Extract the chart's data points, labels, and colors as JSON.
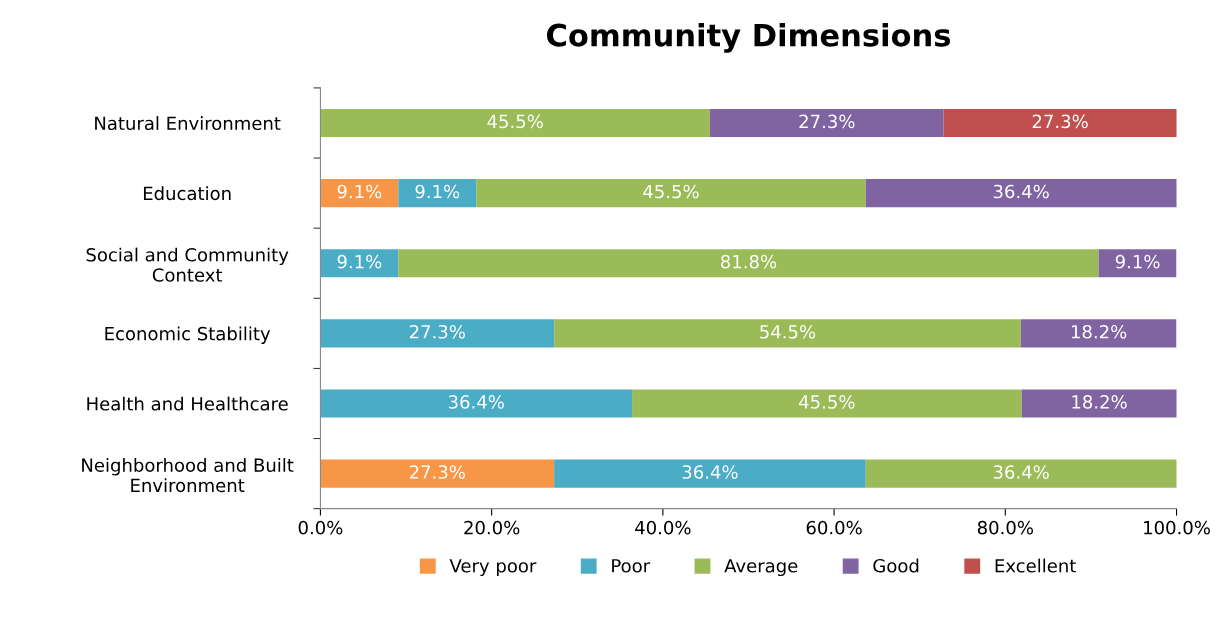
{
  "chart_data": {
    "type": "bar",
    "orientation": "horizontal",
    "stacked": true,
    "title": "Community Dimensions",
    "categories": [
      "Natural Environment",
      "Education",
      "Social and Community\nContext",
      "Economic Stability",
      "Health and Healthcare",
      "Neighborhood and Built\nEnvironment"
    ],
    "series": [
      {
        "name": "Very poor",
        "color": "#f79646",
        "values": [
          null,
          9.1,
          null,
          null,
          null,
          27.3
        ],
        "value_labels": [
          null,
          "9.1%",
          null,
          null,
          null,
          "27.3%"
        ]
      },
      {
        "name": "Poor",
        "color": "#4bacc6",
        "values": [
          null,
          9.1,
          9.1,
          27.3,
          36.4,
          36.4
        ],
        "value_labels": [
          null,
          "9.1%",
          "9.1%",
          "27.3%",
          "36.4%",
          "36.4%"
        ]
      },
      {
        "name": "Average",
        "color": "#9bbb59",
        "values": [
          45.5,
          45.5,
          81.8,
          54.5,
          45.5,
          36.4
        ],
        "value_labels": [
          "45.5%",
          "45.5%",
          "81.8%",
          "54.5%",
          "45.5%",
          "36.4%"
        ]
      },
      {
        "name": "Good",
        "color": "#8064a2",
        "values": [
          27.3,
          36.4,
          9.1,
          18.2,
          18.2,
          null
        ],
        "value_labels": [
          "27.3%",
          "36.4%",
          "9.1%",
          "18.2%",
          "18.2%",
          null
        ]
      },
      {
        "name": "Excellent",
        "color": "#c0504d",
        "values": [
          27.3,
          null,
          null,
          null,
          null,
          null
        ],
        "value_labels": [
          "27.3%",
          null,
          null,
          null,
          null,
          null
        ]
      }
    ],
    "xlim": [
      0,
      100
    ],
    "xticks": [
      {
        "value": 0,
        "label": "0.0%"
      },
      {
        "value": 20,
        "label": "20.0%"
      },
      {
        "value": 40,
        "label": "40.0%"
      },
      {
        "value": 60,
        "label": "60.0%"
      },
      {
        "value": 80,
        "label": "80.0%"
      },
      {
        "value": 100,
        "label": "100.0%"
      }
    ],
    "grid": false,
    "legend": "bottom"
  }
}
